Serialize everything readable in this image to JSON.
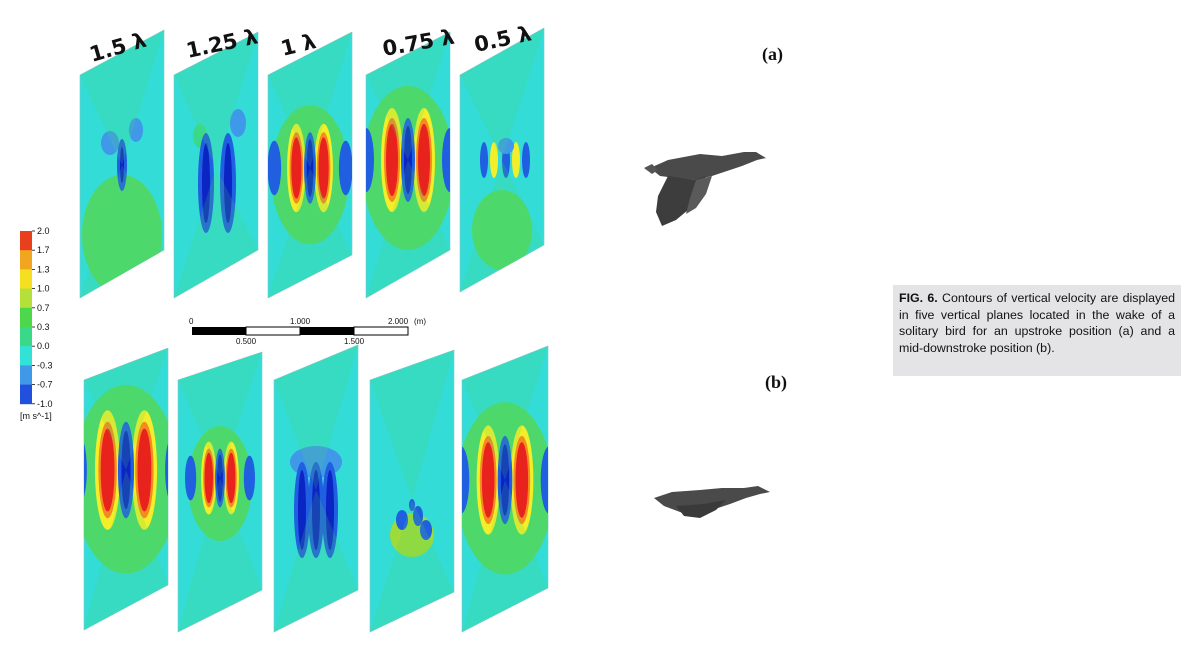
{
  "figure": {
    "plane_labels": [
      "1.5 λ",
      "1.25 λ",
      "1 λ",
      "0.75 λ",
      "0.5 λ"
    ],
    "panel_a": "(a)",
    "panel_b": "(b)",
    "colorbar": {
      "ticks": [
        "2.0",
        "1.7",
        "1.3",
        "1.0",
        "0.7",
        "0.3",
        "0.0",
        "-0.3",
        "-0.7",
        "-1.0"
      ],
      "unit": "[m s^-1]",
      "colors": [
        "#e8401c",
        "#f2a51e",
        "#f4e021",
        "#b4e03a",
        "#4cd84a",
        "#3ad98a",
        "#33e2d6",
        "#3f99e8",
        "#2150df",
        "#0a22c0"
      ]
    },
    "scalebar": {
      "top_labels": [
        "0",
        "1.000",
        "2.000"
      ],
      "unit": "(m)",
      "bottom_labels": [
        "0.500",
        "1.500"
      ]
    },
    "colors": {
      "background_cyan": "#33dcd6",
      "green": "#4ed86c",
      "blue": "#1f5fe0",
      "dark_blue": "#0b24c4",
      "red": "#e8221c",
      "yellow": "#f2ee2a",
      "bird_gray": "#4a4a4a"
    }
  },
  "caption": {
    "label": "FIG. 6.",
    "text": "Contours of vertical velocity are displayed in five vertical planes located in the wake of a solitary bird for an upstroke position (a) and a mid-downstroke position (b)."
  }
}
